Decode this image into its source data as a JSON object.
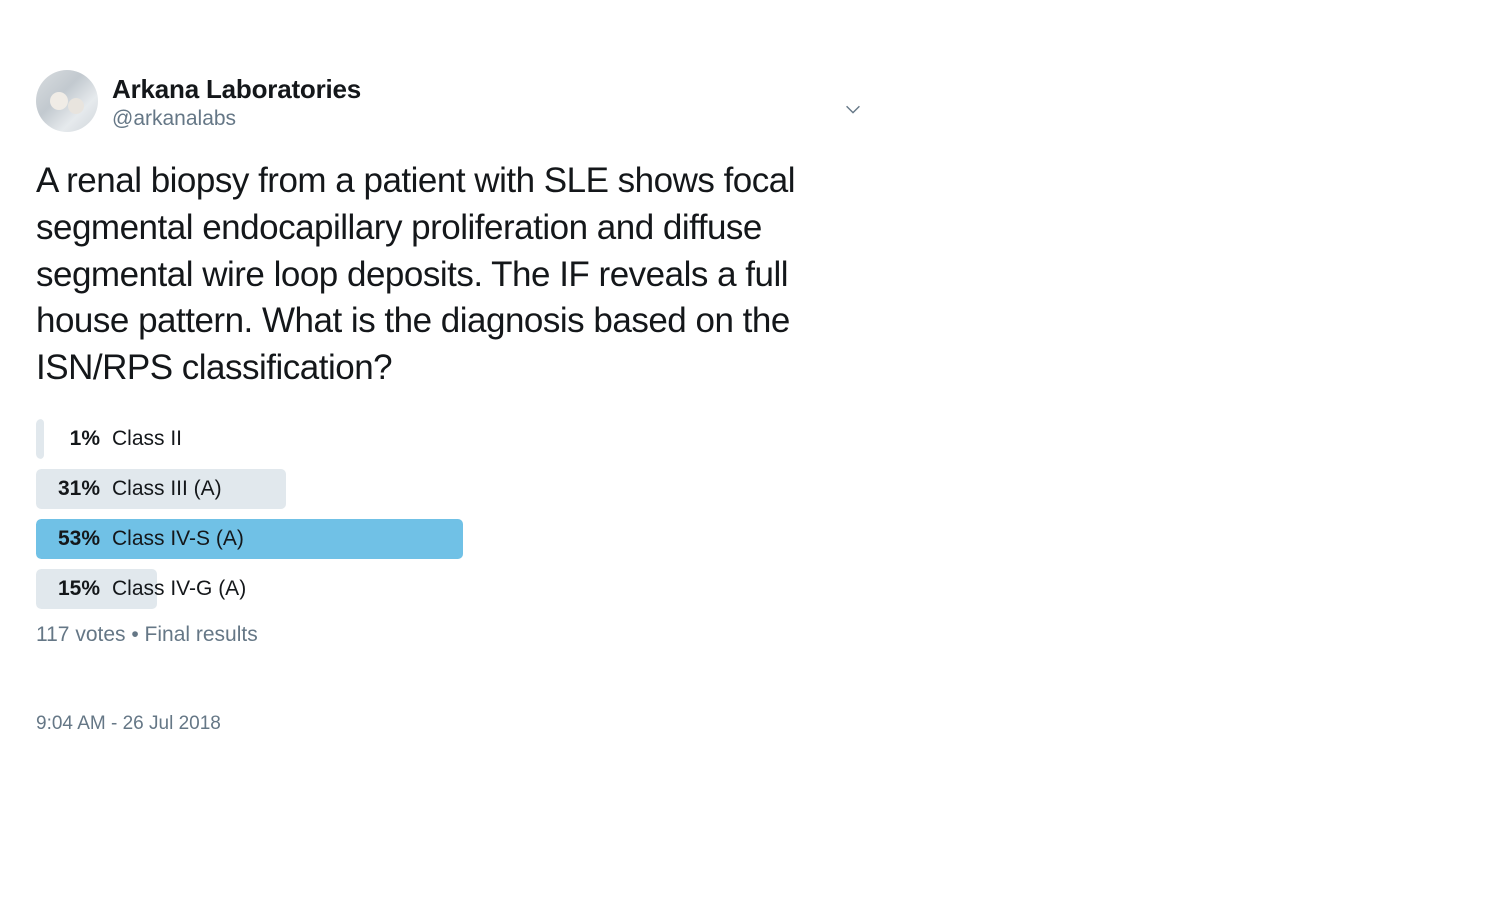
{
  "tweet": {
    "author": {
      "display_name": "Arkana Laboratories",
      "handle": "@arkanalabs"
    },
    "body": "A renal biopsy from a patient with SLE shows focal segmental endocapillary proliferation and diffuse segmental wire loop deposits. The IF reveals a full house pattern. What is the diagnosis based on the ISN/RPS classification?",
    "poll": {
      "options": [
        {
          "pct_label": "1%",
          "pct_value": 1,
          "label": "Class II",
          "winner": false
        },
        {
          "pct_label": "31%",
          "pct_value": 31,
          "label": "Class III (A)",
          "winner": false
        },
        {
          "pct_label": "53%",
          "pct_value": 53,
          "label": "Class IV-S (A)",
          "winner": true
        },
        {
          "pct_label": "15%",
          "pct_value": 15,
          "label": "Class IV-G (A)",
          "winner": false
        }
      ],
      "meta": "117 votes • Final results",
      "bar_color_regular": "#e1e8ed",
      "bar_color_winner": "#70c1e6",
      "bar_min_width_pct": 1
    },
    "timestamp": "9:04 AM - 26 Jul 2018"
  },
  "colors": {
    "text_primary": "#14171a",
    "text_secondary": "#657786",
    "background": "#ffffff"
  },
  "typography": {
    "display_name_fontsize": 26,
    "handle_fontsize": 21,
    "body_fontsize": 35,
    "poll_fontsize": 21,
    "meta_fontsize": 21,
    "timestamp_fontsize": 19
  }
}
